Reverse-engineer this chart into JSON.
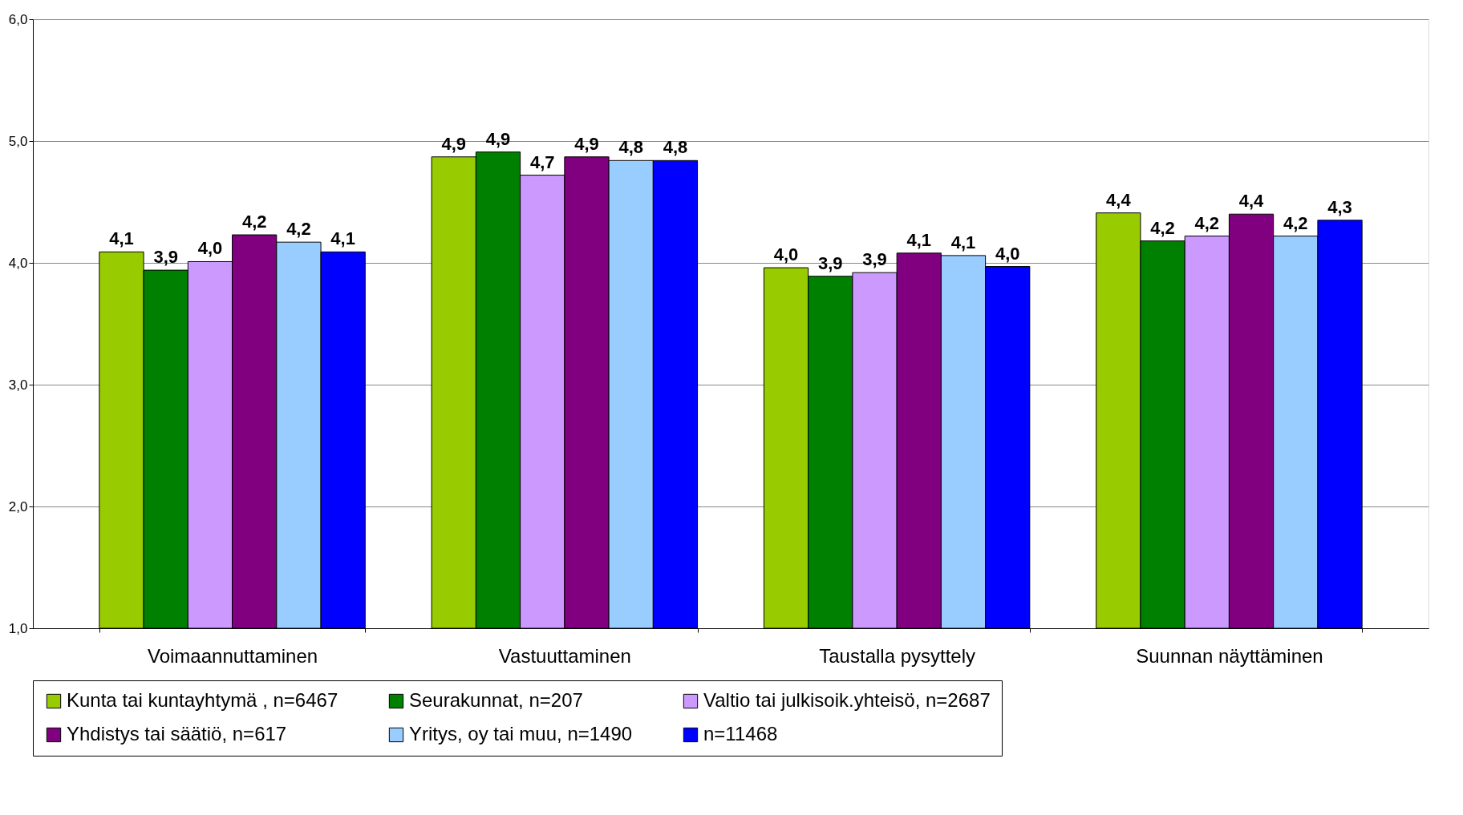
{
  "chart_data": {
    "type": "bar",
    "categories": [
      "Voimaannuttaminen",
      "Vastuuttaminen",
      "Taustalla pysyttely",
      "Suunnan näyttäminen"
    ],
    "series": [
      {
        "name": "Kunta tai kuntayhtymä , n=6467",
        "color": "#99cc00",
        "values": [
          4.09,
          4.87,
          3.96,
          4.41
        ],
        "value_labels": [
          "4,1",
          "4,9",
          "4,0",
          "4,4"
        ]
      },
      {
        "name": "Seurakunnat, n=207",
        "color": "#008000",
        "values": [
          3.94,
          4.91,
          3.89,
          4.18
        ],
        "value_labels": [
          "3,9",
          "4,9",
          "3,9",
          "4,2"
        ]
      },
      {
        "name": "Valtio tai julkisoik.yhteisö, n=2687",
        "color": "#cc99ff",
        "values": [
          4.01,
          4.72,
          3.92,
          4.22
        ],
        "value_labels": [
          "4,0",
          "4,7",
          "3,9",
          "4,2"
        ]
      },
      {
        "name": "Yhdistys tai säätiö, n=617",
        "color": "#800080",
        "values": [
          4.23,
          4.87,
          4.08,
          4.4
        ],
        "value_labels": [
          "4,2",
          "4,9",
          "4,1",
          "4,4"
        ]
      },
      {
        "name": "Yritys, oy tai muu, n=1490",
        "color": "#99ccff",
        "values": [
          4.17,
          4.84,
          4.06,
          4.22
        ],
        "value_labels": [
          "4,2",
          "4,8",
          "4,1",
          "4,2"
        ]
      },
      {
        "name": "n=11468",
        "color": "#0000ff",
        "values": [
          4.09,
          4.84,
          3.97,
          4.35
        ],
        "value_labels": [
          "4,1",
          "4,8",
          "4,0",
          "4,3"
        ]
      }
    ],
    "ylim": [
      1.0,
      6.0
    ],
    "yticks": [
      {
        "value": 1,
        "label": "1,0"
      },
      {
        "value": 2,
        "label": "2,0"
      },
      {
        "value": 3,
        "label": "3,0"
      },
      {
        "value": 4,
        "label": "4,0"
      },
      {
        "value": 5,
        "label": "5,0"
      },
      {
        "value": 6,
        "label": "6,0"
      }
    ],
    "grid": "y",
    "legend": "bottom"
  }
}
